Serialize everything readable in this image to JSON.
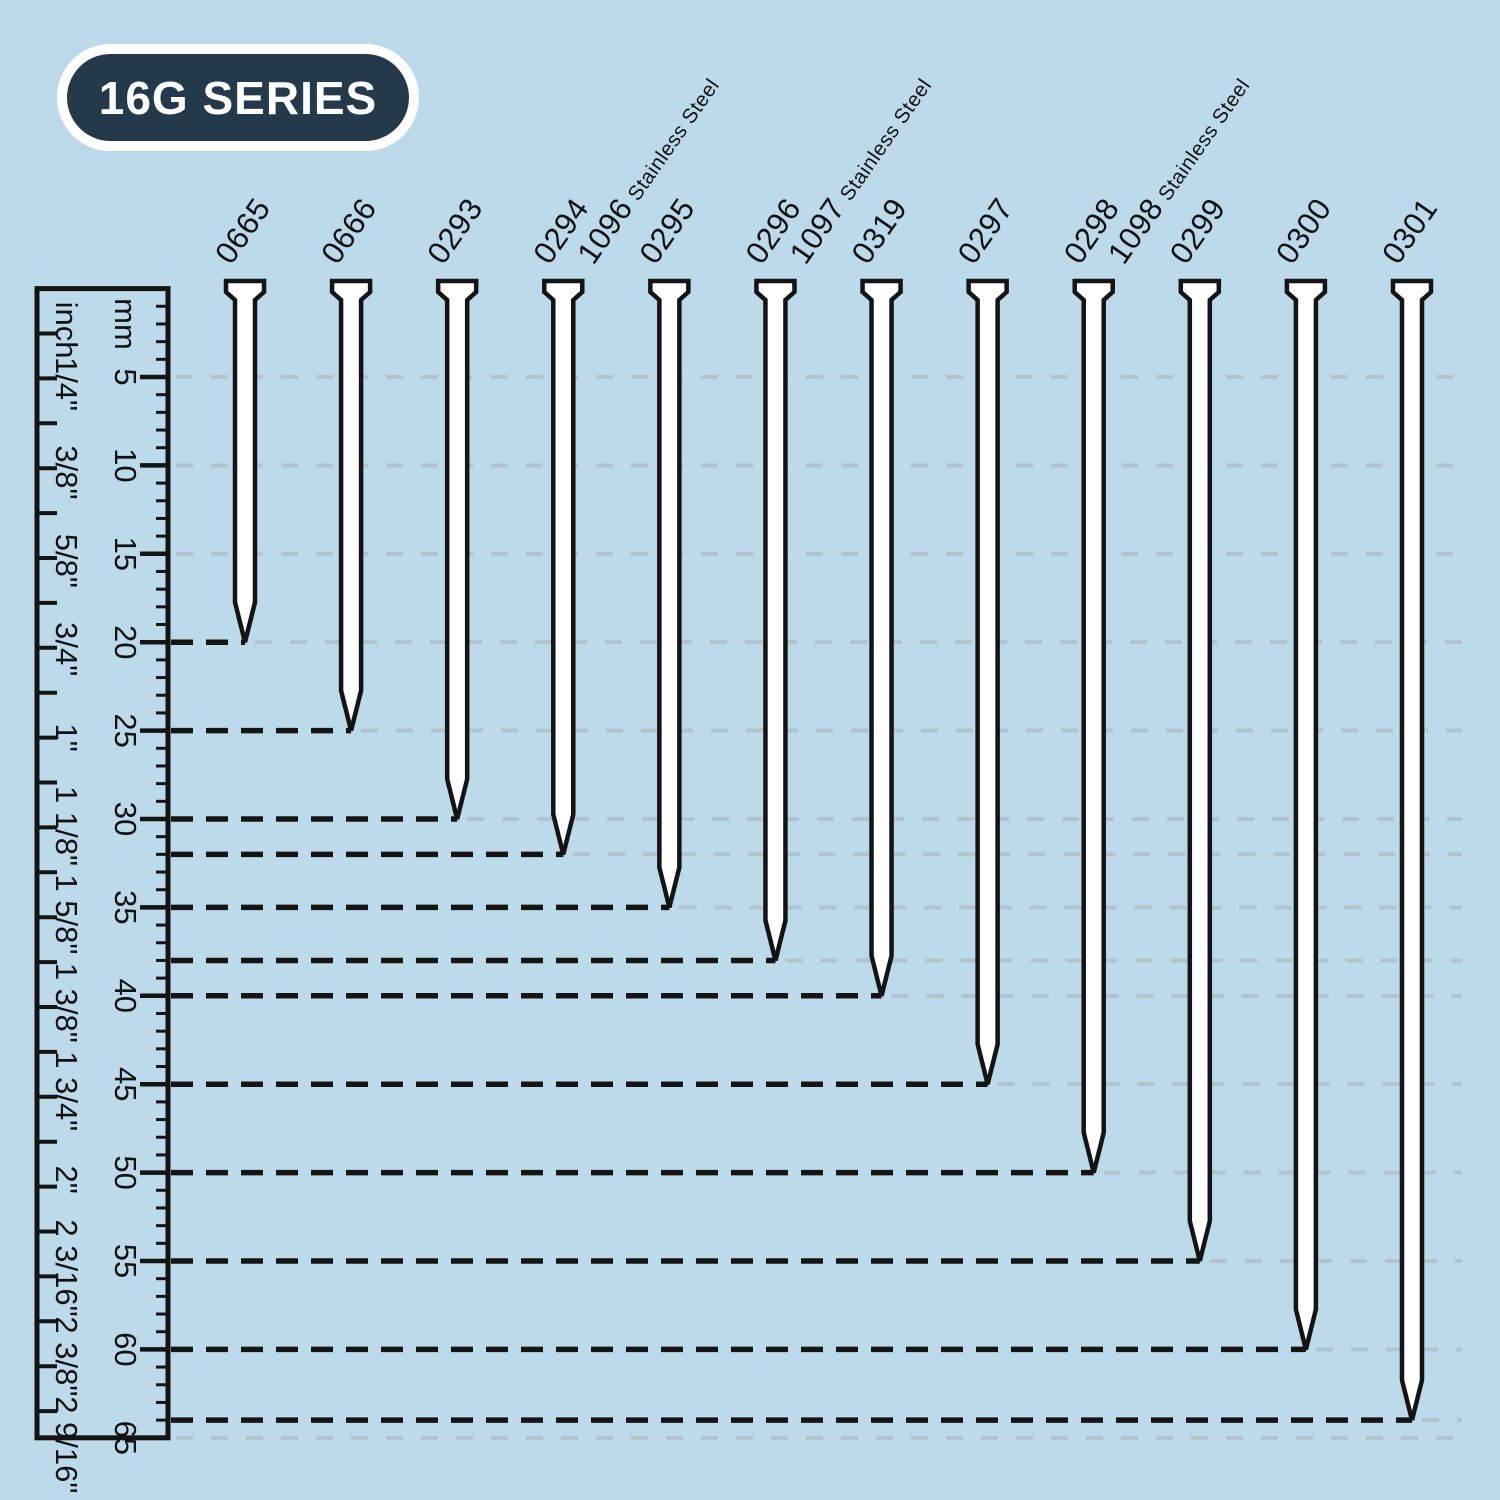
{
  "badge": {
    "label": "16G SERIES"
  },
  "ruler": {
    "left_unit": "inch",
    "right_unit": "mm",
    "mm_tick_labels": [
      "5",
      "10",
      "15",
      "20",
      "25",
      "30",
      "35",
      "40",
      "45",
      "50",
      "55",
      "60",
      "65"
    ],
    "inch_labels": [
      "1/4\"",
      "3/8\"",
      "5/8\"",
      "3/4\"",
      "1\"",
      "1 1/8\"",
      "1 5/8\"",
      "1 3/8\"",
      "1 3/4\"",
      "2\"",
      "2 3/16\"",
      "2 3/8\"",
      "2 9/16\""
    ]
  },
  "chart_data": {
    "type": "bar",
    "title": "16G SERIES",
    "orientation": "vertical nails hanging from top, length measured downward",
    "categories": [
      "0665",
      "0666",
      "0293",
      "0294",
      "0295",
      "0296",
      "0319",
      "0297",
      "0298",
      "0299",
      "0300",
      "0301"
    ],
    "values": [
      20,
      25,
      30,
      32,
      35,
      38,
      40,
      45,
      50,
      55,
      60,
      64
    ],
    "ylabel": "mm",
    "secondary_axis_label": "inch",
    "ylim": [
      0,
      65
    ],
    "grid": "dashed horizontal lines every 5 mm",
    "legend_position": "none",
    "secondary_labels": [
      {
        "category": "0294",
        "label": "1096",
        "note": "Stainless Steel"
      },
      {
        "category": "0296",
        "label": "1097",
        "note": "Stainless Steel"
      },
      {
        "category": "0298",
        "label": "1098",
        "note": "Stainless Steel"
      }
    ]
  },
  "nails": [
    {
      "model": "0665",
      "length_mm": 20
    },
    {
      "model": "0666",
      "length_mm": 25
    },
    {
      "model": "0293",
      "length_mm": 30
    },
    {
      "model": "0294",
      "alt_model": "1096",
      "alt_note": "Stainless Steel",
      "length_mm": 32
    },
    {
      "model": "0295",
      "length_mm": 35
    },
    {
      "model": "0296",
      "alt_model": "1097",
      "alt_note": "Stainless Steel",
      "length_mm": 38
    },
    {
      "model": "0319",
      "length_mm": 40
    },
    {
      "model": "0297",
      "length_mm": 45
    },
    {
      "model": "0298",
      "alt_model": "1098",
      "alt_note": "Stainless Steel",
      "length_mm": 50
    },
    {
      "model": "0299",
      "length_mm": 55
    },
    {
      "model": "0300",
      "length_mm": 60
    },
    {
      "model": "0301",
      "length_mm": 64
    }
  ],
  "colors": {
    "background": "#bddaea",
    "badge_fill": "#243a4b",
    "badge_ring": "#ffffff",
    "nail_fill": "#ffffff",
    "outline_black": "#141414",
    "grid_gray": "#aebfca",
    "text": "#111111"
  }
}
